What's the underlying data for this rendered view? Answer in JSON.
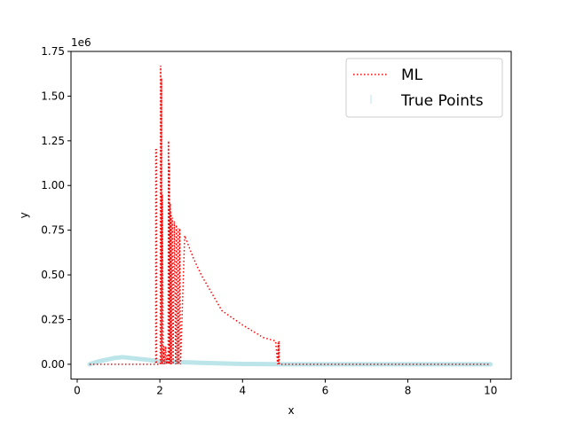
{
  "chart_data": {
    "type": "line",
    "xlabel": "x",
    "ylabel": "y",
    "y_offset_label": "1e6",
    "xlim": [
      -0.15,
      10.5
    ],
    "ylim": [
      -0.083,
      1.75
    ],
    "x_ticks": [
      0,
      2,
      4,
      6,
      8,
      10
    ],
    "y_ticks": [
      0,
      0.25,
      0.5,
      0.75,
      1.0,
      1.25,
      1.5,
      1.75
    ],
    "y_tick_labels": [
      "0.00",
      "0.25",
      "0.50",
      "0.75",
      "1.00",
      "1.25",
      "1.50",
      "1.75"
    ],
    "grid": false,
    "legend_position": "top-right",
    "series": [
      {
        "name": "True Points",
        "style": "thick translucent line",
        "color": "#b0e0e6",
        "x": [
          0.3,
          0.5,
          0.7,
          0.9,
          1.1,
          1.3,
          1.5,
          1.7,
          1.9,
          2.0,
          2.2,
          2.5,
          2.8,
          3.0,
          3.5,
          4.0,
          4.5,
          5.0,
          6.0,
          7.0,
          8.0,
          9.0,
          10.0
        ],
        "y": [
          0.0,
          0.015,
          0.025,
          0.035,
          0.04,
          0.035,
          0.03,
          0.025,
          0.02,
          0.015,
          0.015,
          0.012,
          0.01,
          0.008,
          0.005,
          0.002,
          0.001,
          0.0,
          0.0,
          0.0,
          0.0,
          0.0,
          0.0
        ]
      },
      {
        "name": "ML",
        "style": "dotted",
        "color": "#ff0000",
        "x": [
          0.3,
          1.9,
          1.9,
          1.92,
          1.92,
          2.01,
          2.02,
          2.03,
          2.04,
          2.05,
          2.06,
          2.08,
          2.1,
          2.12,
          2.14,
          2.16,
          2.18,
          2.2,
          2.21,
          2.22,
          2.23,
          2.24,
          2.25,
          2.26,
          2.27,
          2.28,
          2.3,
          2.32,
          2.35,
          2.38,
          2.4,
          2.42,
          2.44,
          2.46,
          2.48,
          2.5,
          2.6,
          2.8,
          3.0,
          3.5,
          4.0,
          4.5,
          4.8,
          4.85,
          4.86,
          4.87,
          4.88,
          4.89,
          4.9,
          5.0,
          6.0,
          7.0,
          8.0,
          9.0,
          10.0
        ],
        "y": [
          0.0,
          0.0,
          1.2,
          1.2,
          0.0,
          0.0,
          1.67,
          0.0,
          1.6,
          0.0,
          0.95,
          0.0,
          0.1,
          0.0,
          0.1,
          0.0,
          0.05,
          0.0,
          1.25,
          0.0,
          1.13,
          0.0,
          0.9,
          0.0,
          0.85,
          0.0,
          0.82,
          0.0,
          0.8,
          0.0,
          0.78,
          0.0,
          0.76,
          0.0,
          0.76,
          0.0,
          0.72,
          0.6,
          0.5,
          0.3,
          0.22,
          0.15,
          0.13,
          0.0,
          0.12,
          0.0,
          0.13,
          0.0,
          0.0,
          0.0,
          0.0,
          0.0,
          0.0,
          0.0,
          0.0
        ]
      }
    ],
    "legend": [
      {
        "label": "ML",
        "color": "#ff0000",
        "style": "dotted"
      },
      {
        "label": "True Points",
        "color": "#b0e0e6",
        "style": "thick translucent line"
      }
    ]
  }
}
